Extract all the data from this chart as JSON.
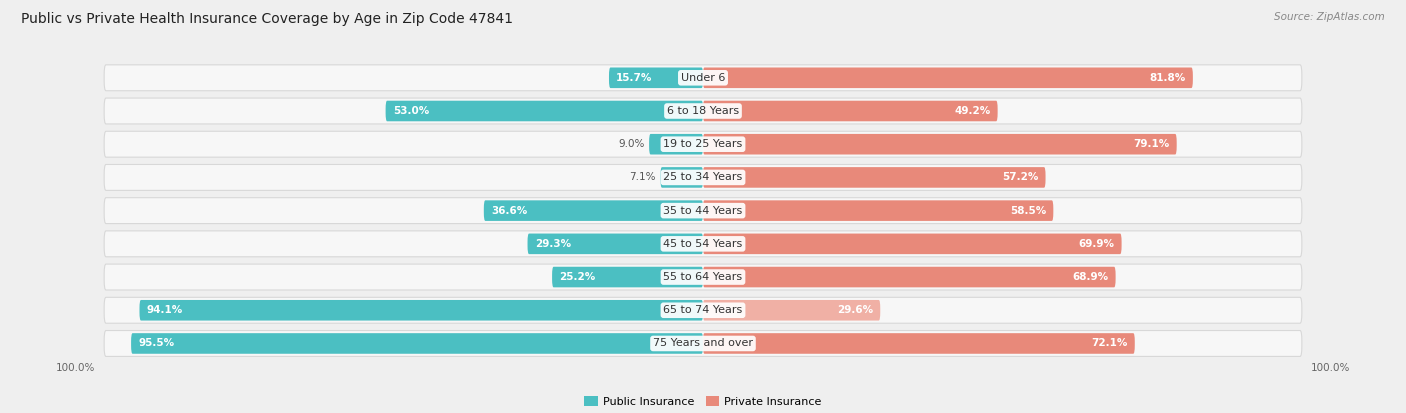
{
  "title": "Public vs Private Health Insurance Coverage by Age in Zip Code 47841",
  "source": "Source: ZipAtlas.com",
  "categories": [
    "Under 6",
    "6 to 18 Years",
    "19 to 25 Years",
    "25 to 34 Years",
    "35 to 44 Years",
    "45 to 54 Years",
    "55 to 64 Years",
    "65 to 74 Years",
    "75 Years and over"
  ],
  "public_values": [
    15.7,
    53.0,
    9.0,
    7.1,
    36.6,
    29.3,
    25.2,
    94.1,
    95.5
  ],
  "private_values": [
    81.8,
    49.2,
    79.1,
    57.2,
    58.5,
    69.9,
    68.9,
    29.6,
    72.1
  ],
  "public_color": "#4bbfc2",
  "private_color": "#e8897a",
  "private_color_light": "#f0b0a5",
  "public_label": "Public Insurance",
  "private_label": "Private Insurance",
  "bg_color": "#efefef",
  "row_bg_color": "#f7f7f7",
  "row_border_color": "#d8d8d8",
  "max_value": 100.0,
  "title_fontsize": 10,
  "label_fontsize": 8,
  "value_fontsize": 7.5,
  "source_fontsize": 7.5
}
